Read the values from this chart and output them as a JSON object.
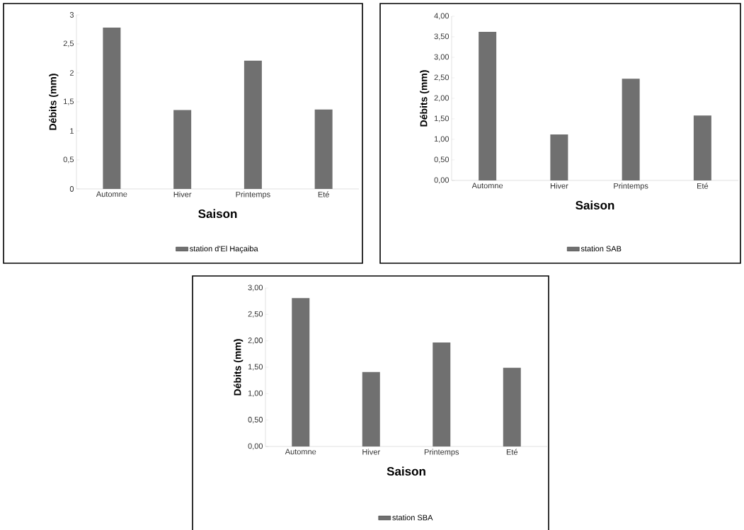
{
  "chart_data": [
    {
      "type": "bar",
      "xlabel": "Saison",
      "ylabel": "Débits (mm)",
      "categories": [
        "Automne",
        "Hiver",
        "Printemps",
        "Eté"
      ],
      "series": [
        {
          "name": "station d'El Haçaiba",
          "color": "#707070",
          "values": [
            2.78,
            1.36,
            2.21,
            1.37
          ]
        }
      ],
      "ylim": [
        0,
        3
      ],
      "yticks": [
        0,
        {
          "value": 0.5,
          "label": "0,5"
        },
        1,
        {
          "value": 1.5,
          "label": "1,5"
        },
        2,
        {
          "value": 2.5,
          "label": "2,5"
        },
        3
      ],
      "legend": "bottom"
    },
    {
      "type": "bar",
      "xlabel": "Saison",
      "ylabel": "Débits (mm)",
      "categories": [
        "Automne",
        "Hiver",
        "Printemps",
        "Eté"
      ],
      "series": [
        {
          "name": "station SAB",
          "color": "#707070",
          "values": [
            3.62,
            1.12,
            2.48,
            1.58
          ]
        }
      ],
      "ylim": [
        0,
        4
      ],
      "yticks": [
        {
          "value": 0,
          "label": "0,00"
        },
        {
          "value": 0.5,
          "label": "0,50"
        },
        {
          "value": 1,
          "label": "1,00"
        },
        {
          "value": 1.5,
          "label": "1,50"
        },
        {
          "value": 2,
          "label": "2,00"
        },
        {
          "value": 2.5,
          "label": "2,50"
        },
        {
          "value": 3,
          "label": "3,00"
        },
        {
          "value": 3.5,
          "label": "3,50"
        },
        {
          "value": 4,
          "label": "4,00"
        }
      ],
      "legend": "bottom"
    },
    {
      "type": "bar",
      "xlabel": "Saison",
      "ylabel": "Débits (mm)",
      "categories": [
        "Automne",
        "Hiver",
        "Printemps",
        "Eté"
      ],
      "series": [
        {
          "name": "station SBA",
          "color": "#707070",
          "values": [
            2.81,
            1.41,
            1.97,
            1.49
          ]
        }
      ],
      "ylim": [
        0,
        3
      ],
      "yticks": [
        {
          "value": 0,
          "label": "0,00"
        },
        {
          "value": 0.5,
          "label": "0,50"
        },
        {
          "value": 1,
          "label": "1,00"
        },
        {
          "value": 1.5,
          "label": "1,50"
        },
        {
          "value": 2,
          "label": "2,00"
        },
        {
          "value": 2.5,
          "label": "2,50"
        },
        {
          "value": 3,
          "label": "3,00"
        }
      ],
      "legend": "bottom"
    }
  ]
}
